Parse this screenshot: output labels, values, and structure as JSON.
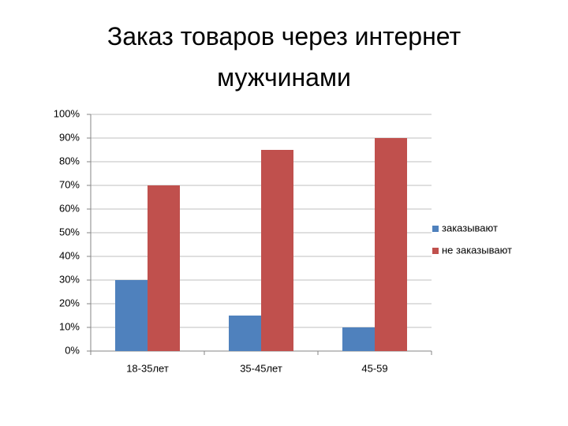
{
  "chart_data": {
    "type": "bar",
    "title": "Заказ товаров через интернет мужчинами",
    "categories": [
      "18-35лет",
      "35-45лет",
      "45-59"
    ],
    "series": [
      {
        "name": "заказывают",
        "color": "#4f81bd",
        "values": [
          30,
          15,
          10
        ]
      },
      {
        "name": "не заказывают",
        "color": "#c0504d",
        "values": [
          70,
          85,
          90
        ]
      }
    ],
    "ylim": [
      0,
      100
    ],
    "yticks": [
      {
        "value": 0,
        "label": "0%"
      },
      {
        "value": 10,
        "label": "10%"
      },
      {
        "value": 20,
        "label": "20%"
      },
      {
        "value": 30,
        "label": "30%"
      },
      {
        "value": 40,
        "label": "40%"
      },
      {
        "value": 50,
        "label": "50%"
      },
      {
        "value": 60,
        "label": "60%"
      },
      {
        "value": 70,
        "label": "70%"
      },
      {
        "value": 80,
        "label": "80%"
      },
      {
        "value": 90,
        "label": "90%"
      },
      {
        "value": 100,
        "label": "100%"
      }
    ],
    "grid": true,
    "legend": "right"
  }
}
